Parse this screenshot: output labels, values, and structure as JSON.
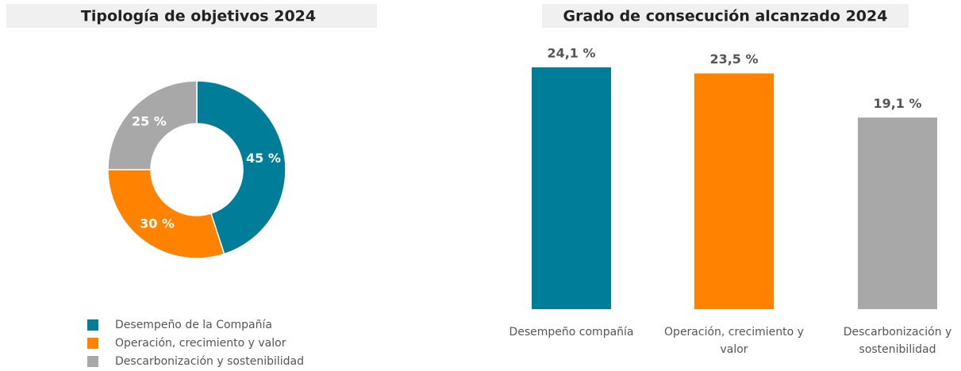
{
  "chart_data": [
    {
      "type": "donut",
      "title": "Tipología de objetivos 2024",
      "categories": [
        "Desempeño de la Compañía",
        "Operación, crecimiento y valor",
        "Descarbonización y sostenibilidad"
      ],
      "values": [
        45,
        30,
        25
      ],
      "value_labels": [
        "45 %",
        "30 %",
        "25 %"
      ],
      "colors": [
        "#007e99",
        "#ff8200",
        "#a8a8a8"
      ],
      "legend": "bottom"
    },
    {
      "type": "bar",
      "title": "Grado de consecución alcanzado 2024",
      "categories": [
        "Desempeño compañía",
        "Operación, crecimiento y valor",
        "Descarbonización y sostenibilidad"
      ],
      "values": [
        24.1,
        23.5,
        19.1
      ],
      "value_labels": [
        "24,1 %",
        "23,5 %",
        "19,1 %"
      ],
      "colors": [
        "#007e99",
        "#ff8200",
        "#a8a8a8"
      ]
    }
  ]
}
